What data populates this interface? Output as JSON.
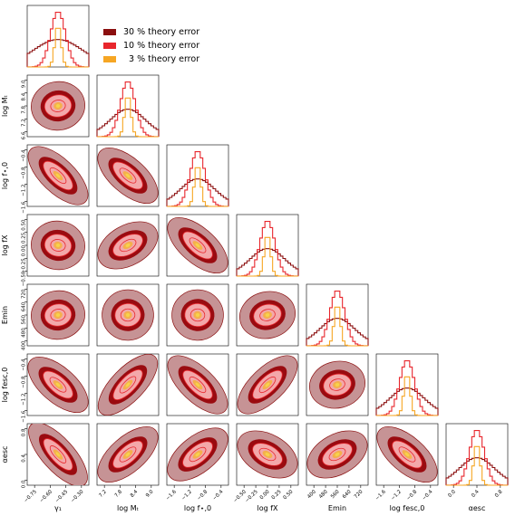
{
  "colors": {
    "theory30": "#8b0f0f",
    "theory10": "#e8262c",
    "theory3": "#f6a623",
    "fill_outer": "#c69395",
    "fill_mid": "#9a0b10",
    "fill_inner": "#f3a8aa",
    "fill_core": "#f4b04c",
    "fill_center": "#f6d34a"
  },
  "legend": {
    "items": [
      {
        "label": "30 % theory error",
        "color": "#8b0f0f"
      },
      {
        "label": "10 % theory error",
        "color": "#e8262c"
      },
      {
        "label": "  3 % theory error",
        "color": "#f6a623"
      }
    ]
  },
  "chart_data": {
    "type": "corner",
    "parameters": [
      {
        "name": "gamma_1",
        "label": "γ₁",
        "ticks": [
          "−0.75",
          "−0.60",
          "−0.45",
          "−0.30"
        ]
      },
      {
        "name": "log_Mt",
        "label": "log Mₜ",
        "ticks": [
          "7.2",
          "7.8",
          "8.4",
          "9.0"
        ]
      },
      {
        "name": "log_fstar0",
        "label": "log f⋆,0",
        "ticks": [
          "−1.6",
          "−1.2",
          "−0.8",
          "−0.4"
        ]
      },
      {
        "name": "log_fX",
        "label": "log fX",
        "ticks": [
          "−0.50",
          "−0.25",
          "0.00",
          "0.25",
          "0.50"
        ]
      },
      {
        "name": "E_min",
        "label": "Emin",
        "ticks": [
          "400",
          "480",
          "560",
          "640",
          "720"
        ]
      },
      {
        "name": "log_fesc0",
        "label": "log fesc,0",
        "ticks": [
          "−1.6",
          "−1.2",
          "−0.8",
          "−0.4"
        ]
      },
      {
        "name": "alpha_esc",
        "label": "αesc",
        "ticks": [
          "0.0",
          "0.4",
          "0.8"
        ]
      }
    ],
    "series": [
      {
        "name": "30 % theory error",
        "color": "#8b0f0f"
      },
      {
        "name": "10 % theory error",
        "color": "#e8262c"
      },
      {
        "name": "3 % theory error",
        "color": "#f6a623"
      }
    ],
    "y_tick_sets": {
      "row1": [
        "9.0",
        "8.4",
        "7.8",
        "7.2",
        "6.6"
      ],
      "row2": [
        "−0.4",
        "−0.8",
        "−1.2",
        "−1.6"
      ],
      "row3": [
        "0.50",
        "0.25",
        "0.00",
        "−0.25",
        "−0.50"
      ],
      "row4": [
        "720",
        "640",
        "560",
        "480",
        "400"
      ],
      "row5": [
        "−0.4",
        "−0.8",
        "−1.2",
        "−1.6"
      ],
      "row6": [
        "0.8",
        "0.4",
        "0.0"
      ]
    },
    "correlations": [
      [
        0,
        0,
        0,
        0,
        0,
        0,
        0
      ],
      [
        0.1,
        0,
        0,
        0,
        0,
        0,
        0
      ],
      [
        -0.6,
        -0.55,
        0,
        0,
        0,
        0,
        0
      ],
      [
        -0.1,
        0.35,
        -0.55,
        0,
        0,
        0,
        0
      ],
      [
        0.1,
        0.05,
        -0.05,
        0.15,
        0,
        0,
        0
      ],
      [
        -0.55,
        0.65,
        -0.6,
        0.6,
        0.15,
        0,
        0
      ],
      [
        -0.7,
        0.55,
        0.5,
        -0.35,
        0.35,
        -0.55,
        0
      ]
    ]
  }
}
